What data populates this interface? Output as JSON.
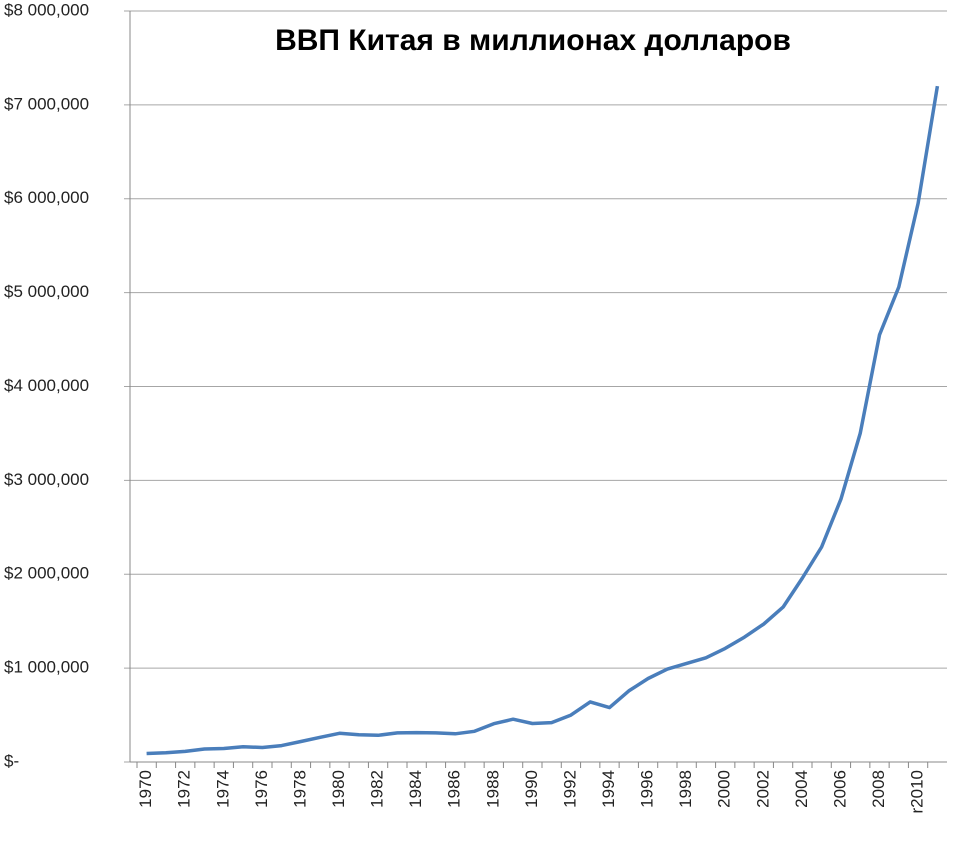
{
  "chart_data": {
    "type": "line",
    "title": "ВВП Китая в миллионах долларов",
    "categories": [
      "1970",
      null,
      "1972",
      null,
      "1974",
      null,
      "1976",
      null,
      "1978",
      null,
      "1980",
      null,
      "1982",
      null,
      "1984",
      null,
      "1986",
      null,
      "1988",
      null,
      "1990",
      null,
      "1992",
      null,
      "1994",
      null,
      "1996",
      null,
      "1998",
      null,
      "2000",
      null,
      "2002",
      null,
      "2004",
      null,
      "2006",
      null,
      "2008",
      null,
      "r2010",
      null
    ],
    "values": [
      91000,
      99000,
      113000,
      138000,
      144000,
      163000,
      154000,
      175000,
      218000,
      263000,
      306000,
      290000,
      284000,
      310000,
      313000,
      310000,
      300000,
      327000,
      408000,
      456000,
      410000,
      420000,
      500000,
      640000,
      580000,
      757000,
      890000,
      990000,
      1050000,
      1110000,
      1210000,
      1330000,
      1470000,
      1650000,
      1960000,
      2290000,
      2800000,
      3500000,
      4550000,
      5060000,
      5950000,
      7200000
    ],
    "color": "#4a7ebb",
    "ylim": [
      0,
      8000000
    ],
    "yticks": [
      {
        "value": 0,
        "label": "$-"
      },
      {
        "value": 1000000,
        "label": "$1 000,000"
      },
      {
        "value": 2000000,
        "label": "$2 000,000"
      },
      {
        "value": 3000000,
        "label": "$3 000,000"
      },
      {
        "value": 4000000,
        "label": "$4 000,000"
      },
      {
        "value": 5000000,
        "label": "$5 000,000"
      },
      {
        "value": 6000000,
        "label": "$6 000,000"
      },
      {
        "value": 7000000,
        "label": "$7 000,000"
      },
      {
        "value": 8000000,
        "label": "$8 000,000"
      }
    ],
    "grid": true
  }
}
